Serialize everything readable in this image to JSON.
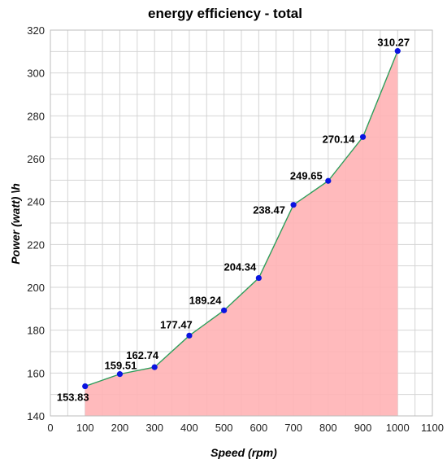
{
  "chart_data": {
    "type": "area",
    "title": "energy efficiency -  total",
    "xlabel": "Speed (rpm)",
    "ylabel": "Power (watt)  \\h",
    "x": [
      100,
      200,
      300,
      400,
      500,
      600,
      700,
      800,
      900,
      1000
    ],
    "series": [
      {
        "values": [
          153.83,
          159.51,
          162.74,
          177.47,
          189.24,
          204.34,
          238.47,
          249.65,
          270.14,
          310.27
        ],
        "labels": [
          "153.83",
          "159.51",
          "162.74",
          "177.47",
          "189.24",
          "204.34",
          "238.47",
          "249.65",
          "270.14",
          "310.27"
        ]
      }
    ],
    "xlim": [
      0,
      1100
    ],
    "ylim": [
      140,
      320
    ],
    "xticks": [
      0,
      100,
      200,
      300,
      400,
      500,
      600,
      700,
      800,
      900,
      1000,
      1100
    ],
    "yticks": [
      140,
      160,
      180,
      200,
      220,
      240,
      260,
      280,
      300,
      320
    ],
    "grid": true,
    "colors": {
      "fill": "#ffb3b5",
      "line": "#2e9e5b",
      "marker": "#0a14e0",
      "grid": "#d4d4d4"
    }
  }
}
